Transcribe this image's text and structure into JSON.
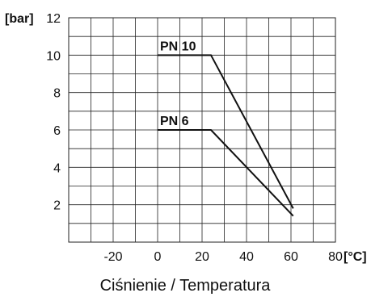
{
  "chart_data": {
    "type": "line",
    "title": "Ciśnienie / Temperatura",
    "xlabel": "[°C]",
    "ylabel": "[bar]",
    "xlim": [
      -40,
      80
    ],
    "ylim": [
      0,
      12
    ],
    "x_ticks": [
      -20,
      0,
      20,
      40,
      60,
      80
    ],
    "y_ticks": [
      2,
      4,
      6,
      8,
      10,
      12
    ],
    "x_grid_step": 10,
    "y_grid_step": 1,
    "grid": true,
    "series": [
      {
        "name": "PN 10",
        "points": [
          [
            0,
            10
          ],
          [
            24,
            10
          ],
          [
            61,
            1.8
          ]
        ]
      },
      {
        "name": "PN 6",
        "points": [
          [
            0,
            6
          ],
          [
            24,
            6
          ],
          [
            61,
            1.4
          ]
        ]
      }
    ]
  }
}
